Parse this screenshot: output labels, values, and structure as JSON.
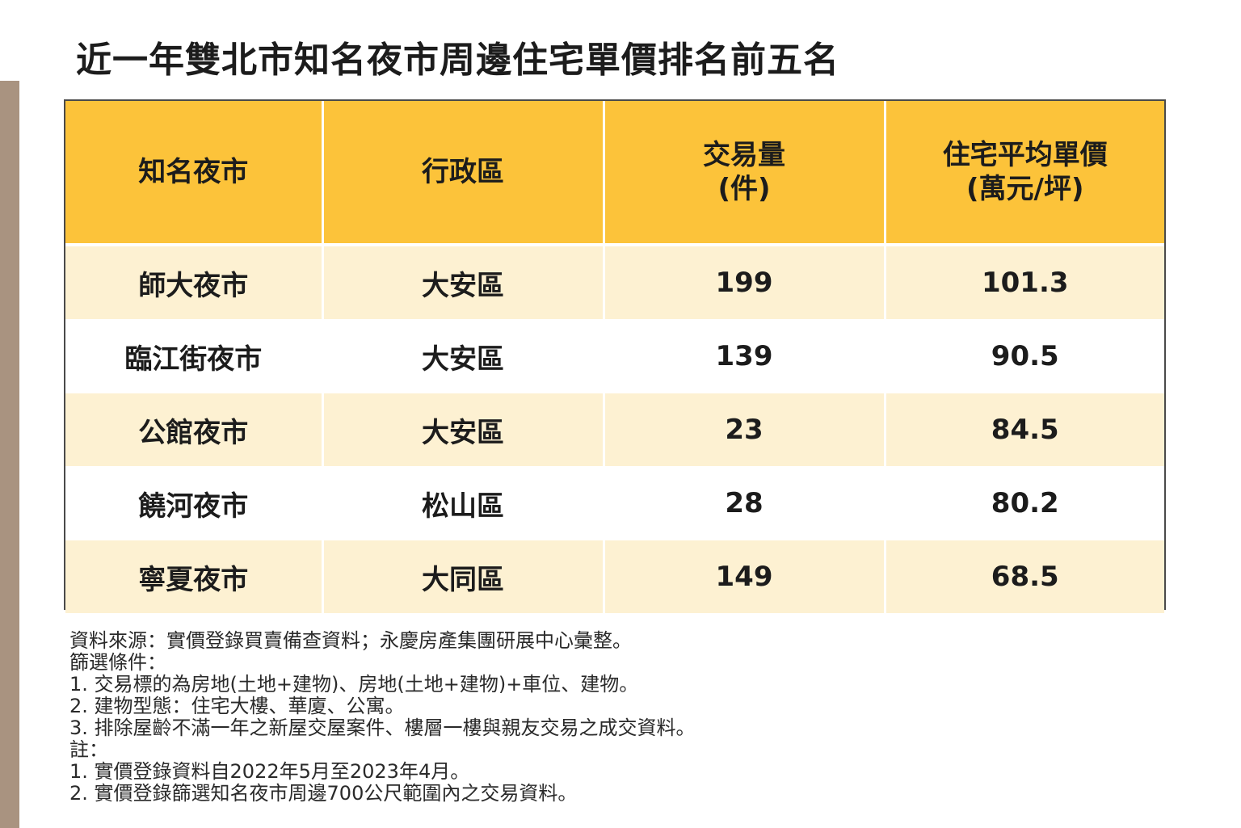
{
  "title": "近一年雙北市知名夜市周邊住宅單價排名前五名",
  "headers": {
    "market": "知名夜市",
    "district": "行政區",
    "volume_line1": "交易量",
    "volume_line2": "(件)",
    "price_line1": "住宅平均單價",
    "price_line2": "(萬元/坪)"
  },
  "rows": [
    {
      "market": "師大夜市",
      "district": "大安區",
      "volume": "199",
      "price": "101.3"
    },
    {
      "market": "臨江街夜市",
      "district": "大安區",
      "volume": "139",
      "price": "90.5"
    },
    {
      "market": "公館夜市",
      "district": "大安區",
      "volume": "23",
      "price": "84.5"
    },
    {
      "market": "饒河夜市",
      "district": "松山區",
      "volume": "28",
      "price": "80.2"
    },
    {
      "market": "寧夏夜市",
      "district": "大同區",
      "volume": "149",
      "price": "68.5"
    }
  ],
  "notes": [
    "資料來源：實價登錄買賣備查資料；永慶房產集團研展中心彙整。",
    "篩選條件：",
    "1. 交易標的為房地(土地+建物)、房地(土地+建物)+車位、建物。",
    "2. 建物型態：住宅大樓、華廈、公寓。",
    "3. 排除屋齡不滿一年之新屋交屋案件、樓層一樓與親友交易之成交資料。",
    "註：",
    "1. 實價登錄資料自2022年5月至2023年4月。",
    "2. 實價登錄篩選知名夜市周邊700公尺範圍內之交易資料。"
  ],
  "colors": {
    "header_bg": "#fcc33a",
    "odd_row_bg": "#fdf1d2",
    "even_row_bg": "#ffffff",
    "side_bar": "#a99380"
  }
}
